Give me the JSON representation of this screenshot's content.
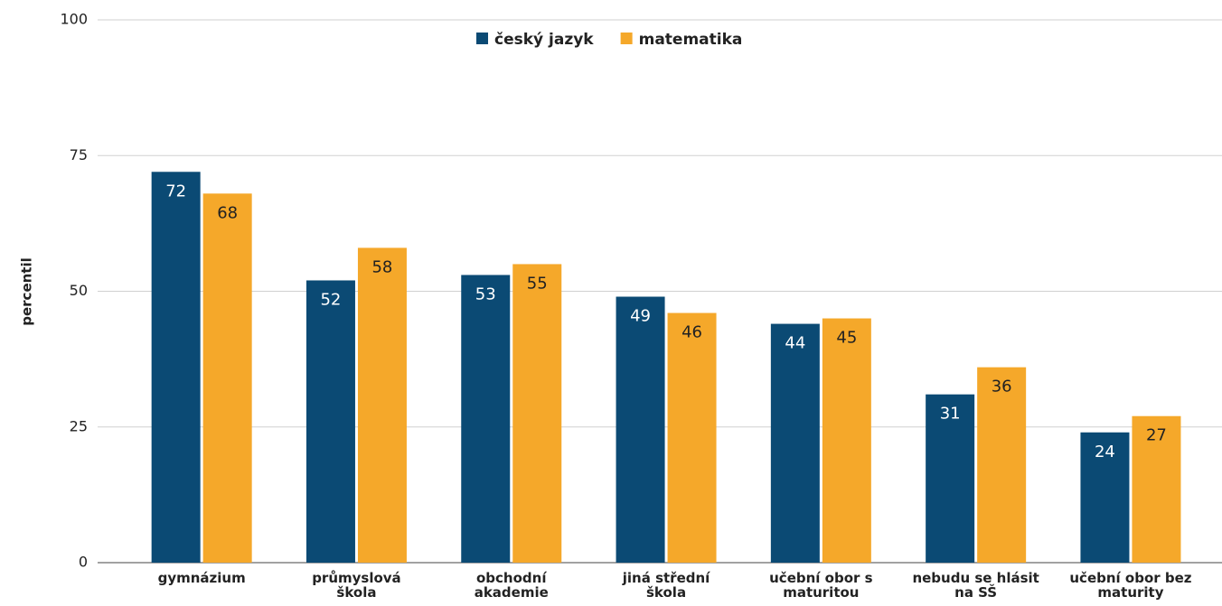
{
  "chart_data": {
    "type": "bar",
    "y_label": "percentil",
    "categories": [
      "gymnázium",
      "průmyslová\nškola",
      "obchodní\nakademie",
      "jiná střední\nškola",
      "učební obor s\nmaturitou",
      "nebudu se hlásit\nna SŠ",
      "učební obor bez\nmaturity"
    ],
    "series": [
      {
        "name": "český jazyk",
        "color": "#0b4a74",
        "values": [
          72,
          52,
          53,
          49,
          44,
          31,
          24
        ]
      },
      {
        "name": "matematika",
        "color": "#f5a82a",
        "values": [
          68,
          58,
          55,
          46,
          45,
          36,
          27
        ]
      }
    ],
    "ylim": [
      0,
      100
    ],
    "yticks": [
      0,
      25,
      50,
      75,
      100
    ],
    "grid": true
  }
}
